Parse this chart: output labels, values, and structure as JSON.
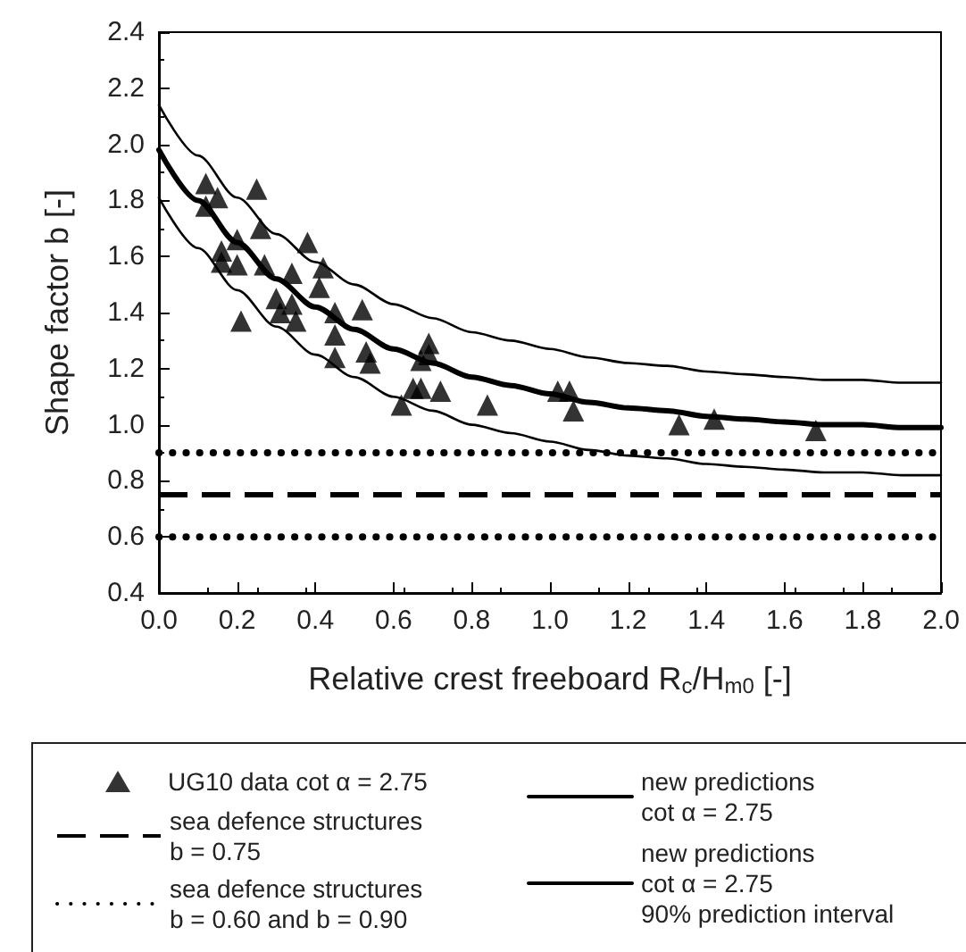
{
  "chart_data": {
    "type": "scatter",
    "xlabel": "Relative crest freeboard R$_{c}$/H$_{m0}$ [-]",
    "ylabel": "Shape factor b [-]",
    "xlim": [
      0,
      2
    ],
    "xticks": [
      {
        "value": 0,
        "label": "0.0"
      },
      0.2,
      0.4,
      0.6,
      0.8,
      {
        "value": 1,
        "label": "1.0"
      },
      1.2,
      1.4,
      1.6,
      1.8,
      {
        "value": 2,
        "label": "2.0"
      }
    ],
    "ylim": [
      0.4,
      2.4
    ],
    "yticks": [
      0.4,
      0.6,
      0.8,
      {
        "value": 1,
        "label": "1.0"
      },
      1.2,
      1.4,
      1.6,
      1.8,
      {
        "value": 2,
        "label": "2.0"
      },
      2.2,
      2.4
    ],
    "grid": false,
    "legend": "bottom",
    "series": [
      {
        "name": "UG10 data cot α = 2.75",
        "marker": "triangle",
        "color": "#000000",
        "x": [
          0.12,
          0.15,
          0.12,
          0.25,
          0.26,
          0.2,
          0.16,
          0.16,
          0.2,
          0.27,
          0.38,
          0.34,
          0.42,
          0.41,
          0.3,
          0.34,
          0.31,
          0.35,
          0.21,
          0.45,
          0.52,
          0.45,
          0.53,
          0.54,
          0.45,
          0.69,
          0.69,
          0.67,
          0.65,
          0.67,
          0.72,
          0.62,
          0.84,
          1.02,
          1.05,
          1.06,
          1.33,
          1.42,
          1.68
        ],
        "values": [
          1.86,
          1.81,
          1.78,
          1.84,
          1.7,
          1.66,
          1.62,
          1.58,
          1.57,
          1.57,
          1.65,
          1.54,
          1.56,
          1.49,
          1.45,
          1.43,
          1.4,
          1.37,
          1.37,
          1.4,
          1.41,
          1.32,
          1.26,
          1.22,
          1.24,
          1.29,
          1.25,
          1.23,
          1.13,
          1.13,
          1.12,
          1.07,
          1.07,
          1.12,
          1.12,
          1.05,
          1.0,
          1.02,
          0.98
        ]
      },
      {
        "name": "new predictions\ncot α = 2.75",
        "type": "line",
        "marker": "none",
        "line_style": "solid",
        "color": "#000000",
        "x": [
          0,
          0.1,
          0.2,
          0.3,
          0.4,
          0.5,
          0.6,
          0.7,
          0.8,
          0.9,
          1.0,
          1.1,
          1.2,
          1.3,
          1.4,
          1.5,
          1.6,
          1.7,
          1.8,
          1.9,
          2.0
        ],
        "values": [
          1.98,
          1.8,
          1.65,
          1.52,
          1.42,
          1.34,
          1.27,
          1.22,
          1.17,
          1.14,
          1.11,
          1.08,
          1.06,
          1.05,
          1.03,
          1.02,
          1.01,
          1.0,
          1.0,
          0.99,
          0.99
        ]
      },
      {
        "name": "new predictions\ncot α = 2.75\n90% prediction interval",
        "type": "line",
        "marker": "none",
        "line_style": "solid",
        "color": "#000000",
        "x": [
          0,
          0.1,
          0.2,
          0.3,
          0.4,
          0.5,
          0.6,
          0.7,
          0.8,
          0.9,
          1.0,
          1.1,
          1.2,
          1.3,
          1.4,
          1.5,
          1.6,
          1.7,
          1.8,
          1.9,
          2.0
        ],
        "values": [
          2.14,
          1.96,
          1.81,
          1.68,
          1.58,
          1.5,
          1.43,
          1.38,
          1.33,
          1.3,
          1.27,
          1.24,
          1.22,
          1.21,
          1.19,
          1.18,
          1.17,
          1.16,
          1.16,
          1.15,
          1.15
        ]
      },
      {
        "type": "line",
        "marker": "none",
        "line_style": "solid",
        "color": "#000000",
        "x": [
          0,
          0.1,
          0.2,
          0.3,
          0.4,
          0.5,
          0.6,
          0.7,
          0.8,
          0.9,
          1.0,
          1.1,
          1.2,
          1.3,
          1.4,
          1.5,
          1.6,
          1.7,
          1.8,
          1.9,
          2.0
        ],
        "values": [
          1.81,
          1.63,
          1.48,
          1.35,
          1.25,
          1.17,
          1.1,
          1.05,
          1.0,
          0.97,
          0.94,
          0.91,
          0.89,
          0.88,
          0.86,
          0.85,
          0.84,
          0.83,
          0.83,
          0.82,
          0.82
        ]
      }
    ],
    "ref_lines": [
      {
        "axis": "y",
        "value": 0.75,
        "label": "sea defence structures\nb = 0.75",
        "color": "#000000",
        "line_style": "dashed"
      },
      {
        "axis": "y",
        "value": 0.6,
        "label": "sea defence structures\nb = 0.60 and b = 0.90",
        "color": "#000000",
        "line_style": "dotted"
      },
      {
        "axis": "y",
        "value": 0.9,
        "color": "#000000",
        "line_style": "dotted"
      }
    ]
  }
}
